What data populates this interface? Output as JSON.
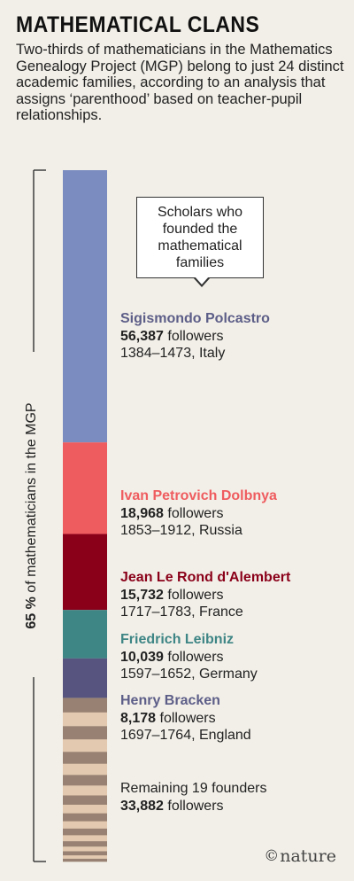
{
  "title": "MATHEMATICAL CLANS",
  "subtitle": "Two-thirds of mathematicians in the Mathematics Genealogy Project (MGP) belong to just 24 distinct academic families, according to an analysis that assigns ‘parenthood’ based on teacher-pupil relationships.",
  "callout": "Scholars who founded the mathematical families",
  "bracket": {
    "value": "65 %",
    "text": " of mathematicians in the MGP"
  },
  "logo": {
    "copyright": "©",
    "text": "nature"
  },
  "founders": [
    {
      "name": "Sigismondo Polcastro",
      "followers": "56,387",
      "followers_word": " followers",
      "details": "1384–1473, Italy",
      "color": "#7b8cc0"
    },
    {
      "name": "Ivan Petrovich Dolbnya",
      "followers": "18,968",
      "followers_word": " followers",
      "details": "1853–1912, Russia",
      "color": "#ef5c5f"
    },
    {
      "name": "Jean Le Rond d'Alembert",
      "followers": "15,732",
      "followers_word": " followers",
      "details": "1717–1783, France",
      "color": "#8a0019"
    },
    {
      "name": "Friedrich Leibniz",
      "followers": "10,039",
      "followers_word": " followers",
      "details": "1597–1652, Germany",
      "color": "#3e8585"
    },
    {
      "name": "Henry Bracken",
      "followers": "8,178",
      "followers_word": " followers",
      "details": "1697–1764, England",
      "color": "#575580"
    }
  ],
  "remaining": {
    "label": "Remaining 19 founders",
    "followers": "33,882",
    "followers_word": " followers"
  },
  "chart_data": {
    "type": "bar",
    "stacked": true,
    "categories": [
      "Sigismondo Polcastro",
      "Ivan Petrovich Dolbnya",
      "Jean Le Rond d'Alembert",
      "Friedrich Leibniz",
      "Henry Bracken",
      "Remaining 19 founders"
    ],
    "values": [
      56387,
      18968,
      15732,
      10039,
      8178,
      33882
    ],
    "remaining_stripe_count": 19,
    "remaining_colors": [
      "#988172",
      "#e2c9b0"
    ],
    "total_share_percent": 65
  }
}
